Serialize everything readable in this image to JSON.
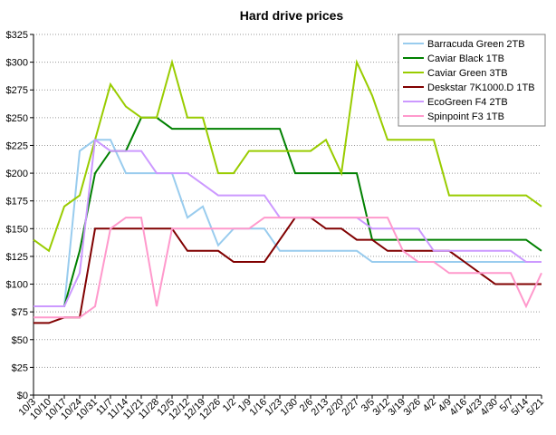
{
  "chart_data": {
    "type": "line",
    "title": "Hard drive prices",
    "xlabel": "",
    "ylabel": "",
    "ylim": [
      0,
      325
    ],
    "y_step": 25,
    "y_tick_format": "$",
    "grid": "horizontal dotted",
    "legend_position": "top-right",
    "x": [
      "10/3",
      "10/10",
      "10/17",
      "10/24",
      "10/31",
      "11/7",
      "11/14",
      "11/21",
      "11/28",
      "12/5",
      "12/12",
      "12/19",
      "12/26",
      "1/2",
      "1/9",
      "1/16",
      "1/23",
      "1/30",
      "2/6",
      "2/13",
      "2/20",
      "2/27",
      "3/5",
      "3/12",
      "3/19",
      "3/26",
      "4/2",
      "4/9",
      "4/16",
      "4/23",
      "4/30",
      "5/7",
      "5/14",
      "5/21"
    ],
    "series": [
      {
        "name": "Barracuda Green 2TB",
        "color": "#99ccee",
        "values": [
          80,
          80,
          80,
          220,
          230,
          230,
          200,
          200,
          200,
          200,
          160,
          170,
          135,
          150,
          150,
          150,
          130,
          130,
          130,
          130,
          130,
          130,
          120,
          120,
          120,
          120,
          120,
          120,
          120,
          120,
          120,
          120,
          120,
          120
        ]
      },
      {
        "name": "Caviar Black 1TB",
        "color": "#008000",
        "values": [
          80,
          80,
          80,
          130,
          200,
          220,
          220,
          250,
          250,
          240,
          240,
          240,
          240,
          240,
          240,
          240,
          240,
          200,
          200,
          200,
          200,
          200,
          140,
          140,
          140,
          140,
          140,
          140,
          140,
          140,
          140,
          140,
          140,
          130
        ]
      },
      {
        "name": "Caviar Green 3TB",
        "color": "#99cc00",
        "values": [
          140,
          130,
          170,
          180,
          230,
          280,
          260,
          250,
          250,
          300,
          250,
          250,
          200,
          200,
          220,
          220,
          220,
          220,
          220,
          230,
          200,
          300,
          270,
          230,
          230,
          230,
          230,
          180,
          180,
          180,
          180,
          180,
          180,
          170
        ]
      },
      {
        "name": "Deskstar 7K1000.D 1TB",
        "color": "#800000",
        "values": [
          65,
          65,
          70,
          70,
          150,
          150,
          150,
          150,
          150,
          150,
          130,
          130,
          130,
          120,
          120,
          120,
          140,
          160,
          160,
          150,
          150,
          140,
          140,
          130,
          130,
          130,
          130,
          130,
          120,
          110,
          100,
          100,
          100,
          100
        ]
      },
      {
        "name": "EcoGreen F4 2TB",
        "color": "#cc99ff",
        "values": [
          80,
          80,
          80,
          110,
          230,
          220,
          220,
          220,
          200,
          200,
          200,
          190,
          180,
          180,
          180,
          180,
          160,
          160,
          160,
          160,
          160,
          160,
          150,
          150,
          150,
          150,
          130,
          130,
          130,
          130,
          130,
          130,
          120,
          120
        ]
      },
      {
        "name": "Spinpoint F3 1TB",
        "color": "#ff99cc",
        "values": [
          70,
          70,
          70,
          70,
          80,
          150,
          160,
          160,
          80,
          150,
          150,
          150,
          150,
          150,
          150,
          160,
          160,
          160,
          160,
          160,
          160,
          160,
          160,
          160,
          130,
          120,
          120,
          110,
          110,
          110,
          110,
          110,
          80,
          110
        ]
      }
    ]
  }
}
